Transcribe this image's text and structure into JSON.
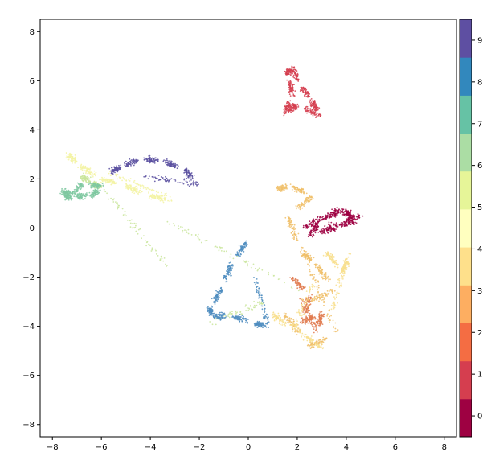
{
  "chart_data": {
    "type": "scatter",
    "xlim": [
      -8.5,
      8.5
    ],
    "ylim": [
      -8.5,
      8.5
    ],
    "xticks": [
      -8,
      -6,
      -4,
      -2,
      0,
      2,
      4,
      6,
      8
    ],
    "yticks": [
      -8,
      -6,
      -4,
      -2,
      0,
      2,
      4,
      6,
      8
    ],
    "grid": false,
    "colorbar": {
      "position": "right",
      "levels": [
        0,
        1,
        2,
        3,
        4,
        5,
        6,
        7,
        8,
        9
      ],
      "colors": [
        "#9e0142",
        "#d53e4f",
        "#f46d43",
        "#fdae61",
        "#fee08b",
        "#ffffbf",
        "#e6f598",
        "#abdda4",
        "#66c2a5",
        "#3288bd",
        "#5e4fa2"
      ]
    },
    "series": [
      {
        "cluster": 0,
        "color": "#9e0142",
        "shape": "blob",
        "points": [
          [
            2.3,
            0.0
          ],
          [
            3.5,
            0.7
          ],
          [
            4.6,
            0.5
          ],
          [
            3.5,
            0.0
          ],
          [
            2.5,
            -0.3
          ],
          [
            3.0,
            0.4
          ],
          [
            4.0,
            0.7
          ],
          [
            4.4,
            0.2
          ]
        ]
      },
      {
        "cluster": 1,
        "color": "#d53e4f",
        "shape": "triangle",
        "points": [
          [
            1.6,
            6.3
          ],
          [
            1.8,
            6.5
          ],
          [
            2.2,
            5.7
          ],
          [
            2.6,
            5.2
          ],
          [
            2.9,
            4.6
          ],
          [
            2.0,
            5.0
          ],
          [
            1.5,
            4.7
          ],
          [
            1.8,
            5.4
          ]
        ]
      },
      {
        "cluster": 2,
        "color": "#e07b50",
        "shape": "blob",
        "points": [
          [
            1.8,
            -2.0
          ],
          [
            2.5,
            -2.8
          ],
          [
            2.2,
            -3.8
          ],
          [
            3.0,
            -3.5
          ],
          [
            2.8,
            -4.2
          ]
        ]
      },
      {
        "cluster": 3,
        "color": "#f0c06a",
        "shape": "blob",
        "points": [
          [
            1.2,
            1.6
          ],
          [
            1.8,
            1.7
          ],
          [
            2.6,
            1.3
          ],
          [
            1.6,
            0.5
          ],
          [
            2.2,
            -1.0
          ],
          [
            2.8,
            -1.5
          ],
          [
            3.5,
            -2.5
          ],
          [
            1.5,
            -3.5
          ],
          [
            2.5,
            -4.8
          ],
          [
            3.6,
            -4.3
          ]
        ]
      },
      {
        "cluster": 4,
        "color": "#f8df8e",
        "shape": "blob",
        "points": [
          [
            1.0,
            -3.5
          ],
          [
            1.8,
            -4.2
          ],
          [
            3.2,
            -1.0
          ],
          [
            3.9,
            -1.8
          ],
          [
            4.1,
            -1.0
          ],
          [
            3.0,
            -4.9
          ]
        ]
      },
      {
        "cluster": 5,
        "color": "#f3f3a3",
        "shape": "streak",
        "points": [
          [
            -7.4,
            3.0
          ],
          [
            -6.8,
            2.5
          ],
          [
            -6.0,
            2.0
          ],
          [
            -5.0,
            1.7
          ],
          [
            -4.0,
            1.3
          ],
          [
            -3.0,
            1.1
          ]
        ]
      },
      {
        "cluster": 6,
        "color": "#c9e59b",
        "shape": "blob",
        "points": [
          [
            -6.8,
            2.1
          ],
          [
            -6.3,
            1.8
          ],
          [
            -5.9,
            1.6
          ],
          [
            -1.5,
            -3.8
          ],
          [
            2.0,
            -2.5
          ]
        ]
      },
      {
        "cluster": 7,
        "color": "#7ec8a0",
        "shape": "blob",
        "points": [
          [
            -7.6,
            1.5
          ],
          [
            -7.0,
            1.3
          ],
          [
            -6.4,
            1.3
          ],
          [
            -6.0,
            1.7
          ],
          [
            -6.8,
            1.8
          ],
          [
            -7.3,
            1.2
          ]
        ]
      },
      {
        "cluster": 8,
        "color": "#4f8dbf",
        "shape": "curve",
        "points": [
          [
            -0.1,
            -0.6
          ],
          [
            -0.7,
            -1.5
          ],
          [
            -1.1,
            -2.5
          ],
          [
            -1.6,
            -3.3
          ],
          [
            -1.4,
            -3.6
          ],
          [
            -0.6,
            -3.6
          ],
          [
            0.3,
            -3.9
          ],
          [
            0.8,
            -4.0
          ]
        ]
      },
      {
        "cluster": 9,
        "color": "#5b50a0",
        "shape": "arc",
        "points": [
          [
            -5.6,
            2.3
          ],
          [
            -5.0,
            2.6
          ],
          [
            -4.2,
            2.8
          ],
          [
            -3.4,
            2.7
          ],
          [
            -2.6,
            2.4
          ],
          [
            -2.1,
            1.8
          ]
        ]
      }
    ]
  }
}
